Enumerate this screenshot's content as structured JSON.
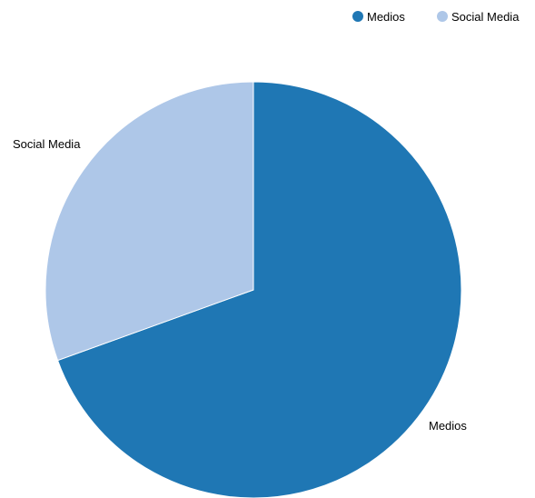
{
  "chart_data": {
    "type": "pie",
    "title": "",
    "legend_position": "top-right",
    "slices": [
      {
        "label": "Medios",
        "value": 69.5,
        "color": "#1f77b4"
      },
      {
        "label": "Social Media",
        "value": 30.5,
        "color": "#aec7e8"
      }
    ]
  },
  "legend": {
    "items": [
      {
        "label": "Medios",
        "color": "#1f77b4"
      },
      {
        "label": "Social Media",
        "color": "#aec7e8"
      }
    ]
  }
}
